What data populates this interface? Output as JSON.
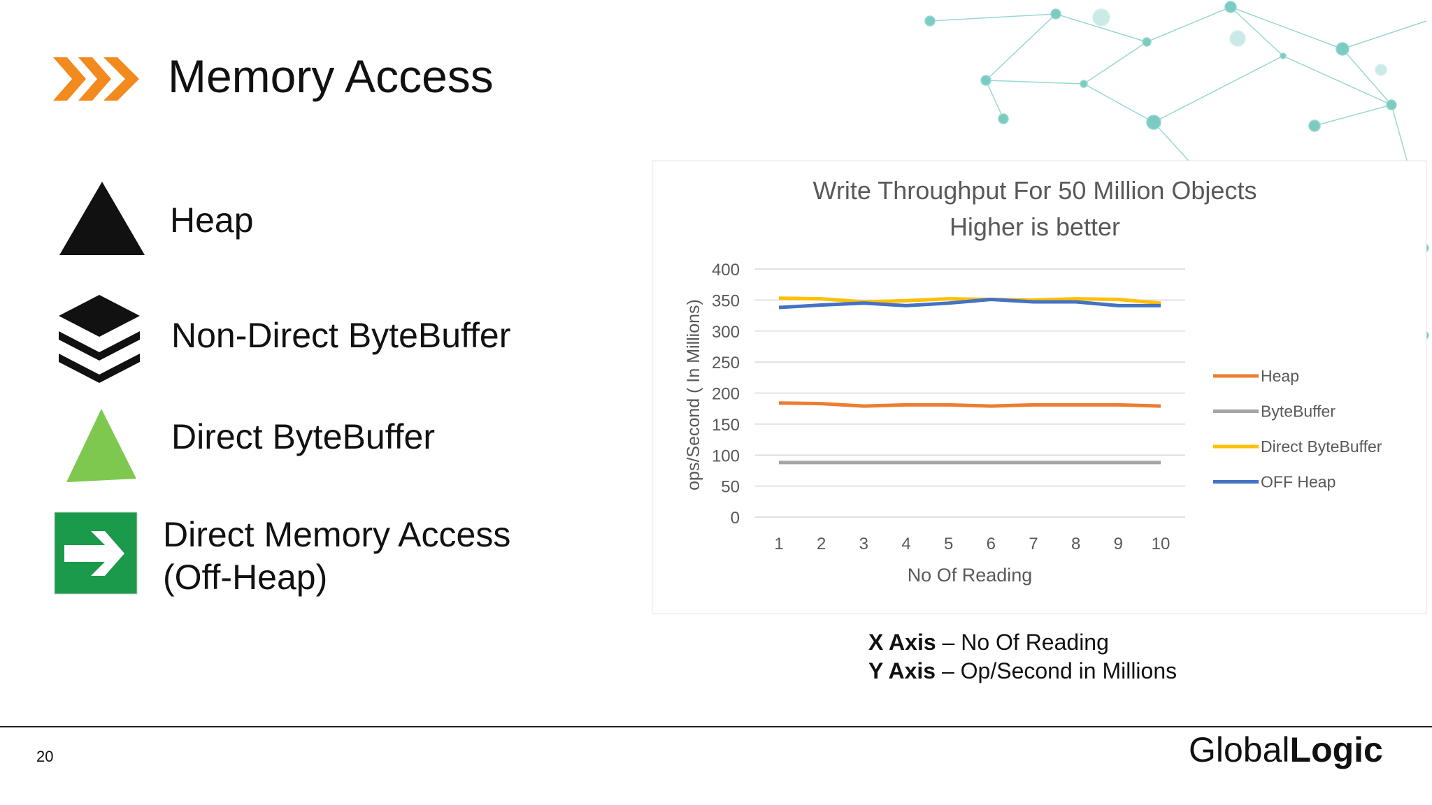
{
  "slide": {
    "title": "Memory Access",
    "items": [
      "Heap",
      "Non-Direct ByteBuffer",
      "Direct ByteBuffer",
      "Direct Memory Access",
      "(Off-Heap)"
    ],
    "notes": [
      {
        "label": "X Axis",
        "text": " – No Of Reading"
      },
      {
        "label": "Y Axis",
        "text": " – Op/Second in Millions"
      }
    ],
    "page_number": "20",
    "logo": {
      "light": "Global",
      "bold": "Logic"
    }
  },
  "chart_data": {
    "type": "line",
    "title": "Write Throughput For 50 Million Objects",
    "subtitle": "Higher is better",
    "x_label": "No Of Reading",
    "y_label": "ops/Second ( In Millions)",
    "categories": [
      "1",
      "2",
      "3",
      "4",
      "5",
      "6",
      "7",
      "8",
      "9",
      "10"
    ],
    "series": [
      {
        "name": "Heap",
        "color": "#ed7d31",
        "values": [
          184,
          183,
          179,
          181,
          181,
          179,
          181,
          181,
          181,
          179
        ]
      },
      {
        "name": "ByteBuffer",
        "color": "#a5a5a5",
        "values": [
          88,
          88,
          88,
          88,
          88,
          88,
          88,
          88,
          88,
          88
        ]
      },
      {
        "name": "Direct ByteBuffer",
        "color": "#ffc000",
        "values": [
          353,
          352,
          347,
          349,
          352,
          351,
          350,
          352,
          351,
          345
        ]
      },
      {
        "name": "OFF Heap",
        "color": "#4472c4",
        "values": [
          338,
          342,
          345,
          341,
          345,
          351,
          347,
          347,
          341,
          341
        ]
      }
    ],
    "ylim": [
      0,
      400
    ],
    "yticks": [
      0,
      50,
      100,
      150,
      200,
      250,
      300,
      350,
      400
    ],
    "grid": true,
    "legend": "right"
  }
}
